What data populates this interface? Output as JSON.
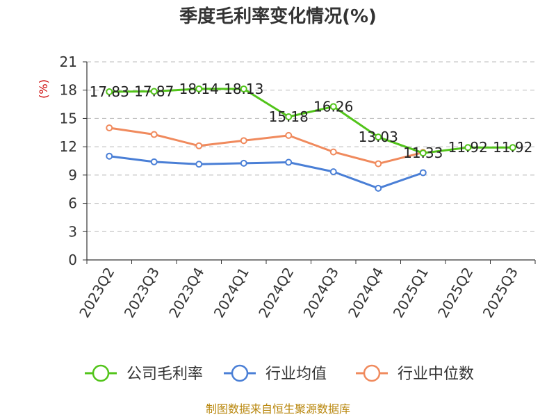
{
  "chart_data": {
    "type": "line",
    "title": "季度毛利率变化情况(%)",
    "ylabel": "(%)",
    "ylim": [
      0,
      21
    ],
    "yticks": [
      0,
      3,
      6,
      9,
      12,
      15,
      18,
      21
    ],
    "grid": true,
    "legend_position": "bottom",
    "categories": [
      "2023Q2",
      "2023Q3",
      "2023Q4",
      "2024Q1",
      "2024Q2",
      "2024Q3",
      "2024Q4",
      "2025Q1",
      "2025Q2",
      "2025Q3"
    ],
    "series": [
      {
        "name": "公司毛利率",
        "color": "#52c41a",
        "values": [
          17.83,
          17.87,
          18.14,
          18.13,
          15.18,
          16.26,
          13.03,
          11.33,
          11.92,
          11.92
        ],
        "labels": [
          "17.83",
          "17.87",
          "18.14",
          "18.13",
          "15.18",
          "16.26",
          "13.03",
          "11.33",
          "11.92",
          "11.92"
        ]
      },
      {
        "name": "行业均值",
        "color": "#4a7fd6",
        "values": [
          11.0,
          10.4,
          10.15,
          10.25,
          10.35,
          9.35,
          7.6,
          9.25,
          null,
          null
        ]
      },
      {
        "name": "行业中位数",
        "color": "#f08a5d",
        "values": [
          14.0,
          13.3,
          12.1,
          12.65,
          13.2,
          11.45,
          10.2,
          11.4,
          null,
          null
        ]
      }
    ],
    "source": "制图数据来自恒生聚源数据库"
  }
}
